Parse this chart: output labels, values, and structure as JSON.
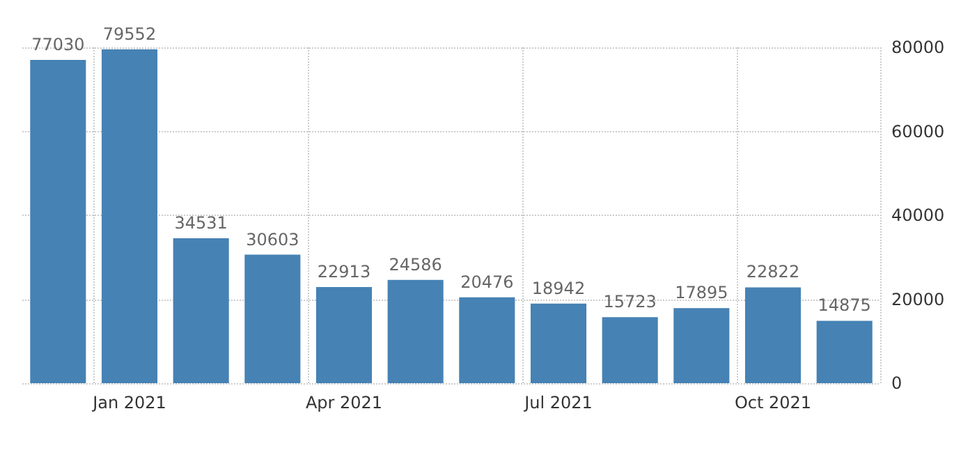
{
  "chart_data": {
    "type": "bar",
    "categories": [
      null,
      "Jan 2021",
      null,
      null,
      "Apr 2021",
      null,
      null,
      "Jul 2021",
      null,
      null,
      "Oct 2021",
      null
    ],
    "values": [
      77030,
      79552,
      34531,
      30603,
      22913,
      24586,
      20476,
      18942,
      15723,
      17895,
      22822,
      14875
    ],
    "color": "#4682b4",
    "ylim": [
      0,
      80000
    ],
    "yticks": [
      0,
      20000,
      40000,
      60000,
      80000
    ],
    "grid": true,
    "data_labels": true
  }
}
